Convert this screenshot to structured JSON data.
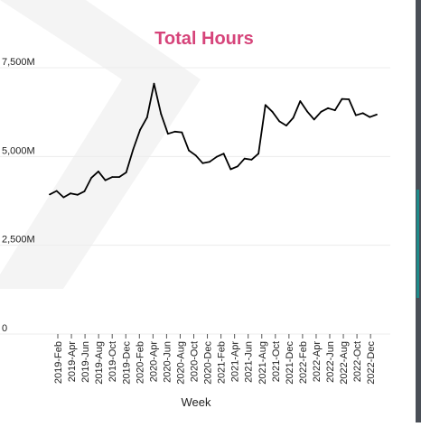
{
  "chart_data": {
    "type": "line",
    "title": "Total Hours",
    "xlabel": "Week",
    "ylabel": "",
    "ylim": [
      0,
      7500
    ],
    "y_ticks": [
      {
        "value": 0,
        "label": "0"
      },
      {
        "value": 2500,
        "label": "2,500M"
      },
      {
        "value": 5000,
        "label": "5,000M"
      },
      {
        "value": 7500,
        "label": "7,500M"
      }
    ],
    "x_tick_labels": [
      "2019-Feb",
      "2019-Apr",
      "2019-Jun",
      "2019-Aug",
      "2019-Oct",
      "2019-Dec",
      "2020-Feb",
      "2020-Apr",
      "2020-Jun",
      "2020-Aug",
      "2020-Oct",
      "2020-Dec",
      "2021-Feb",
      "2021-Apr",
      "2021-Jun",
      "2021-Aug",
      "2021-Oct",
      "2021-Dec",
      "2022-Feb",
      "2022-Apr",
      "2022-Jun",
      "2022-Aug",
      "2022-Oct",
      "2022-Dec"
    ],
    "x_range": [
      0,
      47
    ],
    "grid": "horizontal",
    "legend": "none",
    "line_color": "#000000",
    "title_color": "#d6447a",
    "series": [
      {
        "values": [
          3930,
          4030,
          3850,
          3960,
          3920,
          4020,
          4400,
          4580,
          4330,
          4420,
          4420,
          4550,
          5200,
          5750,
          6100,
          7050,
          6200,
          5640,
          5700,
          5680,
          5170,
          5030,
          4810,
          4850,
          4990,
          5080,
          4640,
          4720,
          4940,
          4910,
          5080,
          6450,
          6260,
          5990,
          5870,
          6090,
          6560,
          6270,
          6040,
          6260,
          6360,
          6300,
          6620,
          6610,
          6160,
          6220,
          6110,
          6180
        ]
      }
    ]
  }
}
